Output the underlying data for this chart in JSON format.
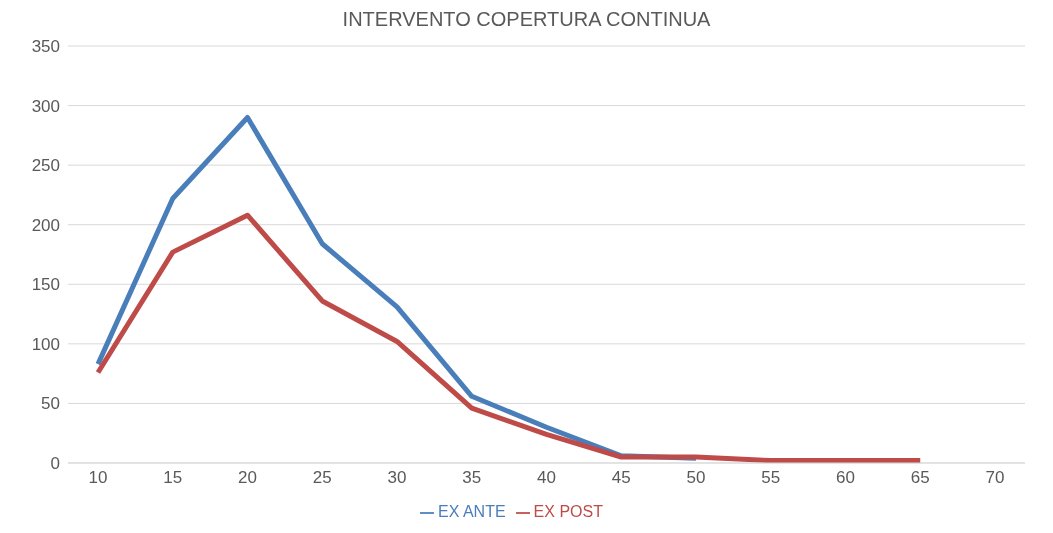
{
  "chart_data": {
    "type": "line",
    "title": "INTERVENTO COPERTURA CONTINUA",
    "categories": [
      "10",
      "15",
      "20",
      "25",
      "30",
      "35",
      "40",
      "45",
      "50",
      "55",
      "60",
      "65",
      "70"
    ],
    "series": [
      {
        "name": "EX ANTE",
        "color": "#4a7ebb",
        "values": [
          83,
          222,
          290,
          184,
          131,
          56,
          30,
          6,
          4,
          null,
          null,
          null,
          null
        ]
      },
      {
        "name": "EX POST",
        "color": "#be4b48",
        "values": [
          76,
          177,
          208,
          136,
          102,
          46,
          24,
          5,
          5,
          2,
          2,
          2,
          null
        ]
      }
    ],
    "ylim": [
      0,
      350
    ],
    "yticks": [
      0,
      50,
      100,
      150,
      200,
      250,
      300,
      350
    ],
    "grid": "y",
    "legend": "bottom",
    "marker": "none",
    "line_style": "solid"
  }
}
